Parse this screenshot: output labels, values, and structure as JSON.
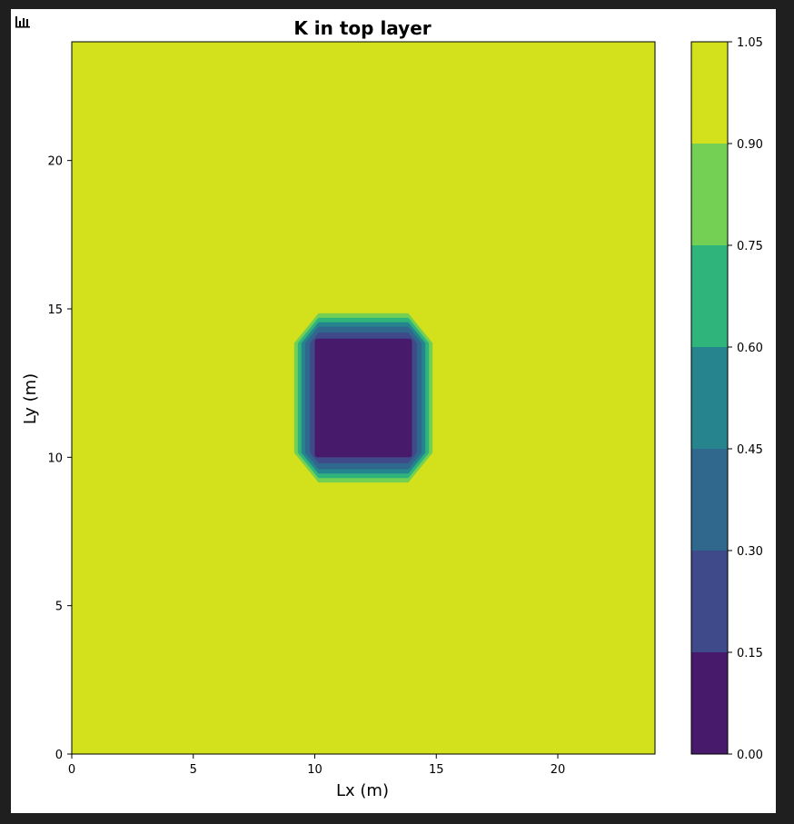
{
  "chart_data": {
    "type": "heatmap",
    "title": "K in top layer",
    "xlabel": "Lx (m)",
    "ylabel": "Ly (m)",
    "xlim": [
      0,
      24
    ],
    "ylim": [
      0,
      24
    ],
    "x_ticks": [
      0,
      5,
      10,
      15,
      20
    ],
    "y_ticks": [
      0,
      5,
      10,
      15,
      20
    ],
    "background_value": 1.0,
    "inclusion": {
      "value": 0.05,
      "core_x": [
        10,
        14
      ],
      "core_y": [
        10,
        14
      ],
      "transition_rings": [
        {
          "value": 0.2,
          "inset": -0.2
        },
        {
          "value": 0.35,
          "inset": -0.4
        },
        {
          "value": 0.5,
          "inset": -0.55
        },
        {
          "value": 0.65,
          "inset": -0.7
        },
        {
          "value": 0.8,
          "inset": -0.85
        }
      ]
    },
    "colorbar": {
      "levels": [
        0.0,
        0.15,
        0.3,
        0.45,
        0.6,
        0.75,
        0.9,
        1.05
      ],
      "tick_labels": [
        "0.00",
        "0.15",
        "0.30",
        "0.45",
        "0.60",
        "0.75",
        "0.90",
        "1.05"
      ],
      "colors": [
        "#481a6c",
        "#3e4a89",
        "#30678d",
        "#25848e",
        "#2fb47c",
        "#74d055",
        "#d2e11b"
      ],
      "placement": "right"
    },
    "grid": false
  },
  "ui": {
    "toolbar_icon": "bar-chart-icon"
  }
}
